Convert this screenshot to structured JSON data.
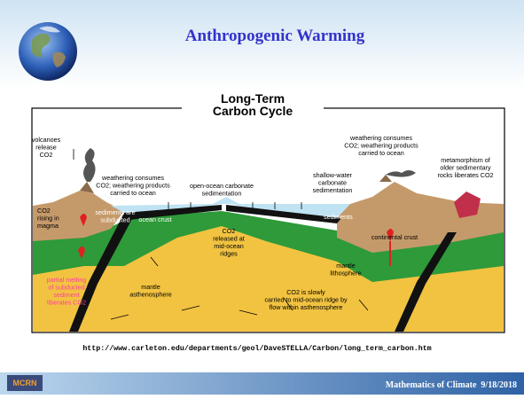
{
  "header": {
    "title": "Anthropogenic Warming"
  },
  "diagram": {
    "title": [
      "Long-Term",
      "Carbon Cycle"
    ],
    "labels": [
      {
        "lines": [
          "volcanoes",
          "release",
          "CO2"
        ]
      },
      {
        "lines": [
          "weathering consumes",
          "CO2; weathering products",
          "carried to ocean"
        ]
      },
      {
        "lines": [
          "open-ocean carbonate",
          "sedimentation"
        ]
      },
      {
        "lines": [
          "shallow-water",
          "carbonate",
          "sedimentation"
        ]
      },
      {
        "lines": [
          "weathering consumes",
          "CO2; weathering products",
          "carried to ocean"
        ]
      },
      {
        "lines": [
          "metamorphism of",
          "older sedimentary",
          "rocks liberates CO2"
        ]
      },
      {
        "lines": [
          "CO2",
          "rising in",
          "magma"
        ]
      },
      {
        "lines": [
          "sediments are",
          "subducted"
        ]
      },
      {
        "lines": [
          "ocean crust"
        ]
      },
      {
        "lines": [
          "sediments"
        ]
      },
      {
        "lines": [
          "continental crust"
        ]
      },
      {
        "lines": [
          "CO2",
          "released at",
          "mid-ocean",
          "ridges"
        ]
      },
      {
        "lines": [
          "mantle",
          "lithosphere"
        ]
      },
      {
        "lines": [
          "partial melting",
          "of subducted",
          "sediment",
          "liberates CO2"
        ]
      },
      {
        "lines": [
          "mantle",
          "asthenosphere"
        ]
      },
      {
        "lines": [
          "CO2 is slowly",
          "carried to mid-ocean ridge by",
          "flow within asthenosphere"
        ]
      }
    ]
  },
  "source_url": "http://www.carleton.edu/departments/geol/DaveSTELLA/Carbon/long_term_carbon.htm",
  "footer": {
    "logo": "MCRN",
    "text": "Mathematics of Climate  9/18/2018"
  }
}
